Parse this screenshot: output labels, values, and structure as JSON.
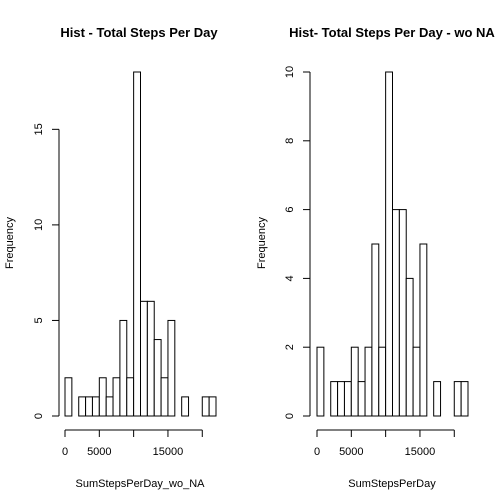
{
  "chart_data": [
    {
      "type": "bar",
      "title": "Hist - Total Steps Per Day",
      "xlabel": "SumStepsPerDay_wo_NA",
      "ylabel": "Frequency",
      "bin_width": 1000,
      "x_start": 0,
      "categories": [
        "0-1000",
        "1000-2000",
        "2000-3000",
        "3000-4000",
        "4000-5000",
        "5000-6000",
        "6000-7000",
        "7000-8000",
        "8000-9000",
        "9000-10000",
        "10000-11000",
        "11000-12000",
        "12000-13000",
        "13000-14000",
        "14000-15000",
        "15000-16000",
        "16000-17000",
        "17000-18000",
        "18000-19000",
        "19000-20000",
        "20000-21000",
        "21000-22000"
      ],
      "values": [
        2,
        0,
        1,
        1,
        1,
        2,
        1,
        2,
        5,
        2,
        18,
        6,
        6,
        4,
        2,
        5,
        0,
        1,
        0,
        0,
        1,
        1
      ],
      "xlim": [
        0,
        22000
      ],
      "ylim": [
        0,
        18
      ],
      "xticks": [
        0,
        5000,
        15000
      ],
      "xtick_labels": [
        "0",
        "5000",
        "15000"
      ],
      "yticks": [
        0,
        5,
        10,
        15
      ],
      "ytick_labels": [
        "0",
        "5",
        "10",
        "15"
      ]
    },
    {
      "type": "bar",
      "title": "Hist- Total Steps Per Day - wo NA",
      "xlabel": "SumStepsPerDay",
      "ylabel": "Frequency",
      "bin_width": 1000,
      "x_start": 0,
      "categories": [
        "0-1000",
        "1000-2000",
        "2000-3000",
        "3000-4000",
        "4000-5000",
        "5000-6000",
        "6000-7000",
        "7000-8000",
        "8000-9000",
        "9000-10000",
        "10000-11000",
        "11000-12000",
        "12000-13000",
        "13000-14000",
        "14000-15000",
        "15000-16000",
        "16000-17000",
        "17000-18000",
        "18000-19000",
        "19000-20000",
        "20000-21000",
        "21000-22000"
      ],
      "values": [
        2,
        0,
        1,
        1,
        1,
        2,
        1,
        2,
        5,
        2,
        10,
        6,
        6,
        4,
        2,
        5,
        0,
        1,
        0,
        0,
        1,
        1
      ],
      "xlim": [
        0,
        22000
      ],
      "ylim": [
        0,
        10
      ],
      "xticks": [
        0,
        5000,
        15000
      ],
      "xtick_labels": [
        "0",
        "5000",
        "15000"
      ],
      "yticks": [
        0,
        2,
        4,
        6,
        8,
        10
      ],
      "ytick_labels": [
        "0",
        "2",
        "4",
        "6",
        "8",
        "10"
      ]
    }
  ]
}
